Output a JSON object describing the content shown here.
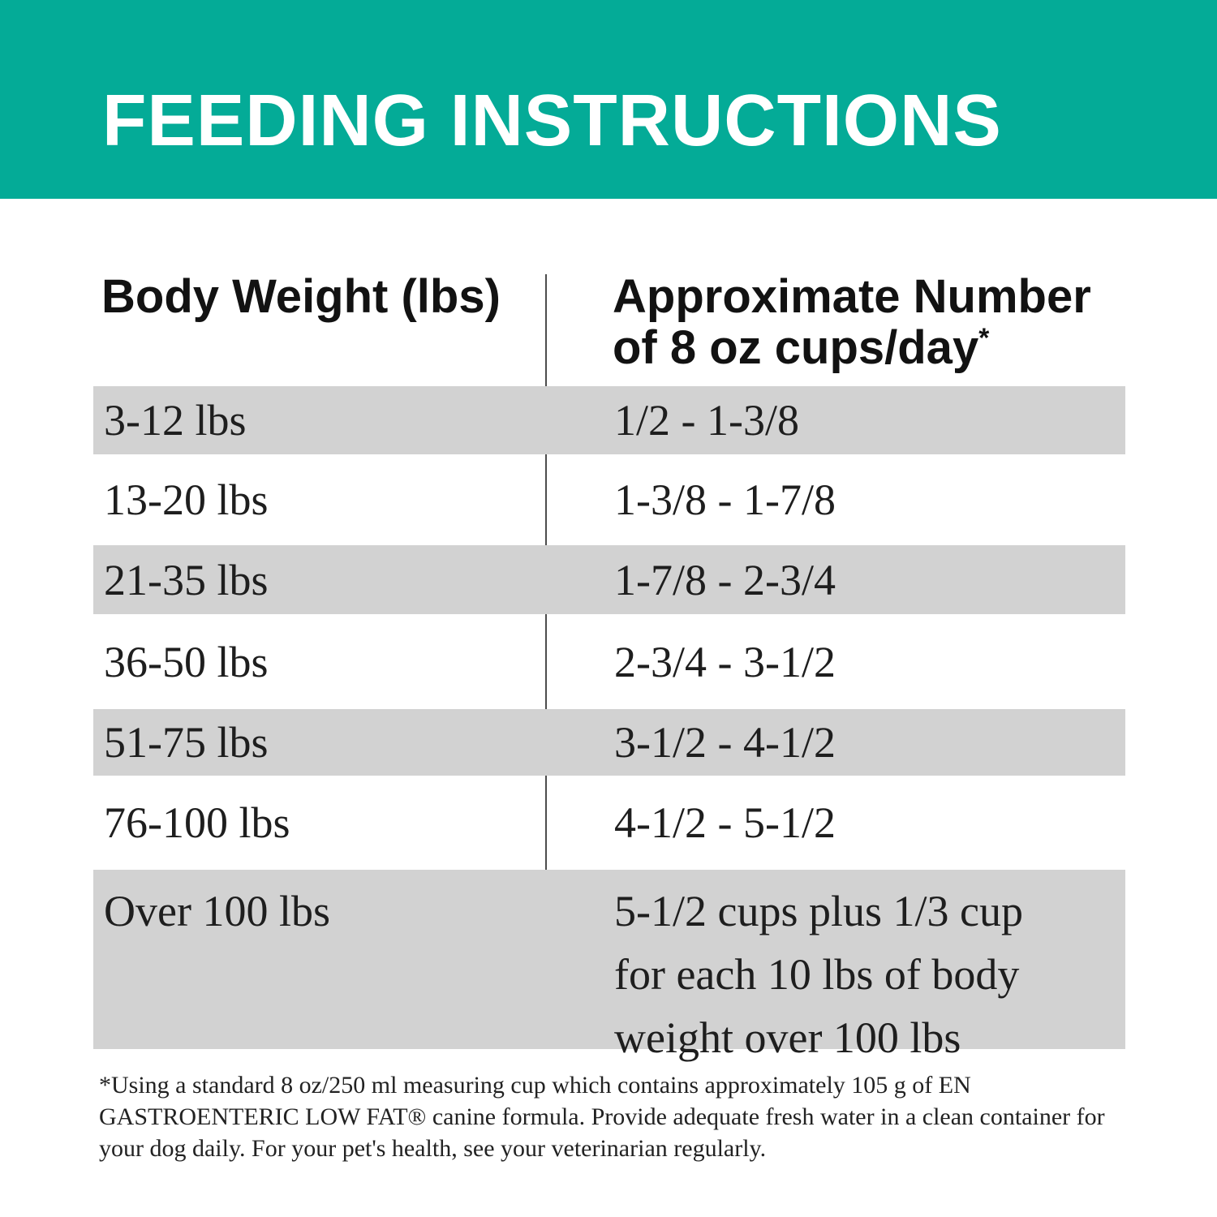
{
  "header": {
    "title": "FEEDING INSTRUCTIONS"
  },
  "table": {
    "columns": [
      {
        "label": "Body Weight (lbs)"
      },
      {
        "label_line1": "Approximate Number",
        "label_line2": "of 8 oz cups/day",
        "superscript": "*"
      }
    ],
    "rows": [
      {
        "weight": "3-12 lbs",
        "cups": "1/2 - 1-3/8",
        "shaded": true
      },
      {
        "weight": "13-20 lbs",
        "cups": "1-3/8 - 1-7/8",
        "shaded": false
      },
      {
        "weight": "21-35 lbs",
        "cups": "1-7/8 - 2-3/4",
        "shaded": true
      },
      {
        "weight": "36-50 lbs",
        "cups": "2-3/4 - 3-1/2",
        "shaded": false
      },
      {
        "weight": "51-75 lbs",
        "cups": "3-1/2 - 4-1/2",
        "shaded": true
      },
      {
        "weight": "76-100 lbs",
        "cups": "4-1/2 - 5-1/2",
        "shaded": false
      },
      {
        "weight": "Over 100 lbs",
        "cups": "5-1/2 cups plus 1/3 cup for each 10 lbs of body weight over 100 lbs",
        "shaded": true
      }
    ]
  },
  "footnote": "*Using a standard 8 oz/250 ml measuring cup which contains approximately 105 g of EN GASTROENTERIC LOW FAT® canine formula. Provide adequate fresh water in a clean container for your dog daily. For your pet's health, see your veterinarian regularly.",
  "colors": {
    "banner_teal": "#04AB97",
    "row_shade_gray": "#D2D2D2",
    "divider_gray": "#4D4D4D",
    "heading_text": "#121212",
    "body_text": "#1E1E1E",
    "banner_text": "#FFFFFF"
  }
}
